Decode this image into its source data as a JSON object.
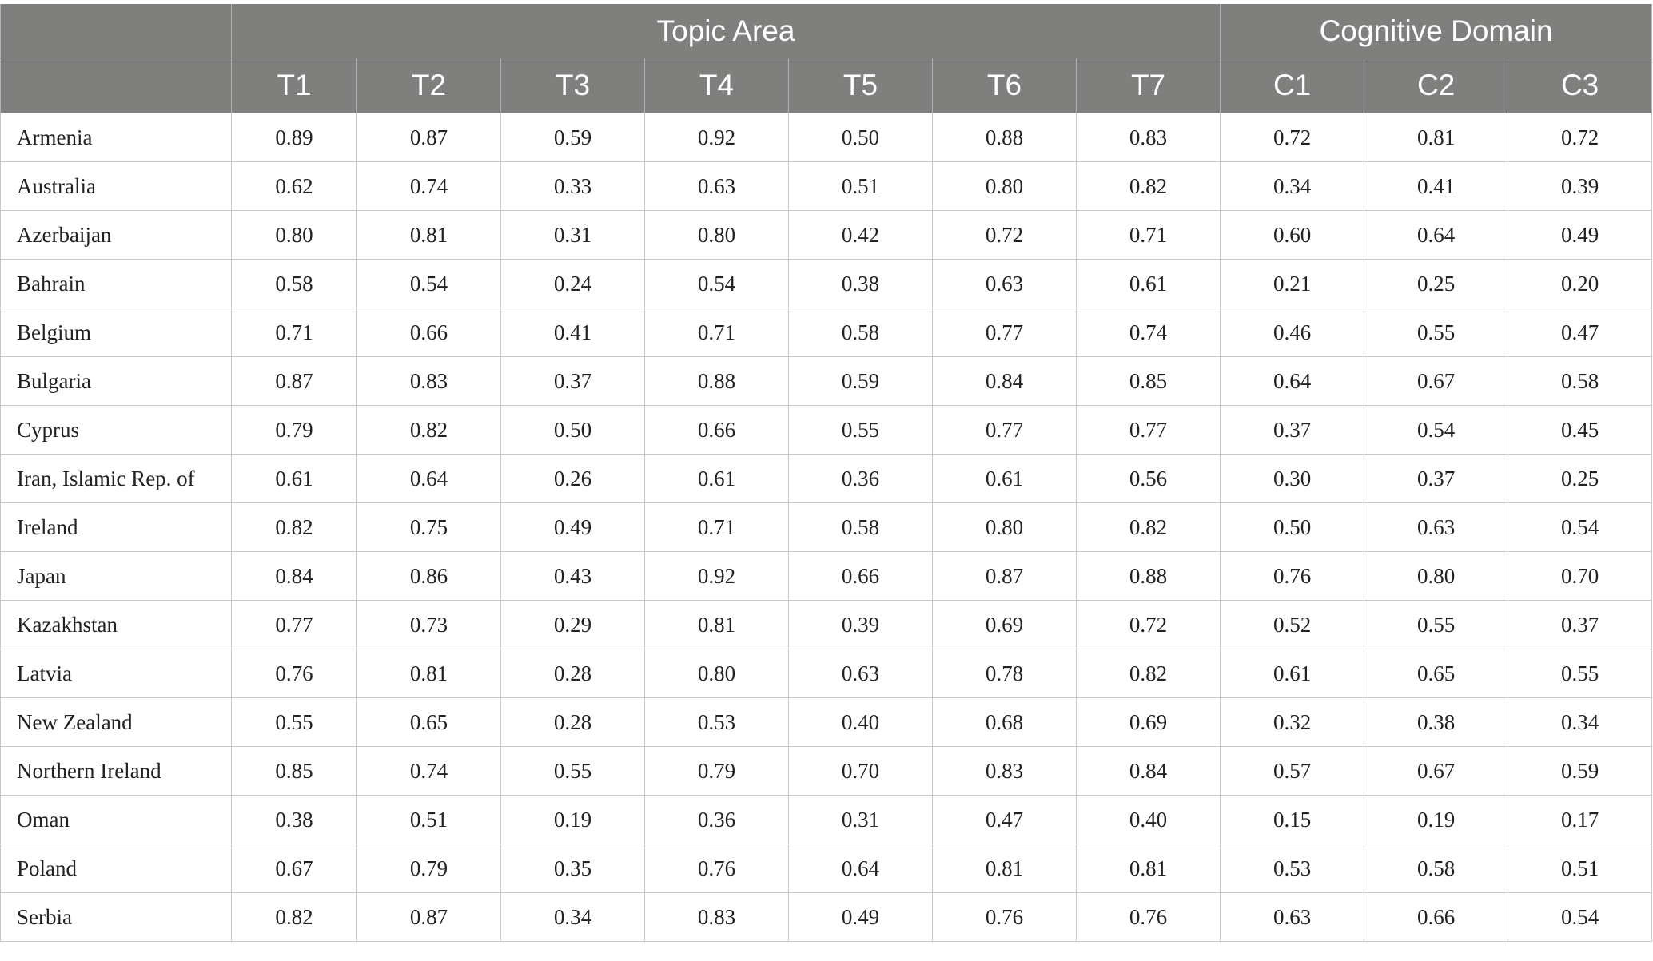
{
  "header": {
    "groups": [
      {
        "label": "",
        "span": 1
      },
      {
        "label": "Topic Area",
        "span": 7
      },
      {
        "label": "Cognitive Domain",
        "span": 3
      }
    ],
    "columns": [
      "T1",
      "T2",
      "T3",
      "T4",
      "T5",
      "T6",
      "T7",
      "C1",
      "C2",
      "C3"
    ]
  },
  "rows": [
    {
      "country": "Armenia",
      "values": [
        "0.89",
        "0.87",
        "0.59",
        "0.92",
        "0.50",
        "0.88",
        "0.83",
        "0.72",
        "0.81",
        "0.72"
      ]
    },
    {
      "country": "Australia",
      "values": [
        "0.62",
        "0.74",
        "0.33",
        "0.63",
        "0.51",
        "0.80",
        "0.82",
        "0.34",
        "0.41",
        "0.39"
      ]
    },
    {
      "country": "Azerbaijan",
      "values": [
        "0.80",
        "0.81",
        "0.31",
        "0.80",
        "0.42",
        "0.72",
        "0.71",
        "0.60",
        "0.64",
        "0.49"
      ]
    },
    {
      "country": "Bahrain",
      "values": [
        "0.58",
        "0.54",
        "0.24",
        "0.54",
        "0.38",
        "0.63",
        "0.61",
        "0.21",
        "0.25",
        "0.20"
      ]
    },
    {
      "country": "Belgium",
      "values": [
        "0.71",
        "0.66",
        "0.41",
        "0.71",
        "0.58",
        "0.77",
        "0.74",
        "0.46",
        "0.55",
        "0.47"
      ]
    },
    {
      "country": "Bulgaria",
      "values": [
        "0.87",
        "0.83",
        "0.37",
        "0.88",
        "0.59",
        "0.84",
        "0.85",
        "0.64",
        "0.67",
        "0.58"
      ]
    },
    {
      "country": "Cyprus",
      "values": [
        "0.79",
        "0.82",
        "0.50",
        "0.66",
        "0.55",
        "0.77",
        "0.77",
        "0.37",
        "0.54",
        "0.45"
      ]
    },
    {
      "country": "Iran, Islamic Rep. of",
      "values": [
        "0.61",
        "0.64",
        "0.26",
        "0.61",
        "0.36",
        "0.61",
        "0.56",
        "0.30",
        "0.37",
        "0.25"
      ]
    },
    {
      "country": "Ireland",
      "values": [
        "0.82",
        "0.75",
        "0.49",
        "0.71",
        "0.58",
        "0.80",
        "0.82",
        "0.50",
        "0.63",
        "0.54"
      ]
    },
    {
      "country": "Japan",
      "values": [
        "0.84",
        "0.86",
        "0.43",
        "0.92",
        "0.66",
        "0.87",
        "0.88",
        "0.76",
        "0.80",
        "0.70"
      ]
    },
    {
      "country": "Kazakhstan",
      "values": [
        "0.77",
        "0.73",
        "0.29",
        "0.81",
        "0.39",
        "0.69",
        "0.72",
        "0.52",
        "0.55",
        "0.37"
      ]
    },
    {
      "country": "Latvia",
      "values": [
        "0.76",
        "0.81",
        "0.28",
        "0.80",
        "0.63",
        "0.78",
        "0.82",
        "0.61",
        "0.65",
        "0.55"
      ]
    },
    {
      "country": "New Zealand",
      "values": [
        "0.55",
        "0.65",
        "0.28",
        "0.53",
        "0.40",
        "0.68",
        "0.69",
        "0.32",
        "0.38",
        "0.34"
      ]
    },
    {
      "country": "Northern Ireland",
      "values": [
        "0.85",
        "0.74",
        "0.55",
        "0.79",
        "0.70",
        "0.83",
        "0.84",
        "0.57",
        "0.67",
        "0.59"
      ]
    },
    {
      "country": "Oman",
      "values": [
        "0.38",
        "0.51",
        "0.19",
        "0.36",
        "0.31",
        "0.47",
        "0.40",
        "0.15",
        "0.19",
        "0.17"
      ]
    },
    {
      "country": "Poland",
      "values": [
        "0.67",
        "0.79",
        "0.35",
        "0.76",
        "0.64",
        "0.81",
        "0.81",
        "0.53",
        "0.58",
        "0.51"
      ]
    },
    {
      "country": "Serbia",
      "values": [
        "0.82",
        "0.87",
        "0.34",
        "0.83",
        "0.49",
        "0.76",
        "0.76",
        "0.63",
        "0.66",
        "0.54"
      ]
    }
  ],
  "colors": {
    "header_bg": "#7f807e",
    "header_text": "#ffffff",
    "grid_line": "#c8c8c8"
  }
}
